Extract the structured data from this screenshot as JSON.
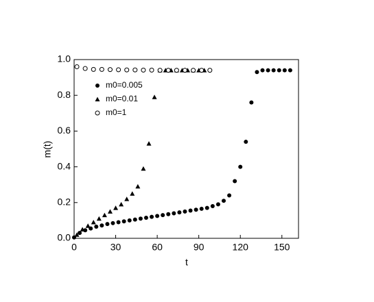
{
  "chart_data": {
    "type": "scatter",
    "xlabel": "t",
    "ylabel": "m(t)",
    "xlim": [
      0,
      162
    ],
    "ylim": [
      0,
      1
    ],
    "xticks": [
      0,
      30,
      60,
      90,
      120,
      150
    ],
    "yticks": [
      {
        "value": 0,
        "label": "0.0"
      },
      {
        "value": 0.2,
        "label": "0.2"
      },
      {
        "value": 0.4,
        "label": "0.4"
      },
      {
        "value": 0.6,
        "label": "0.6"
      },
      {
        "value": 0.8,
        "label": "0.8"
      },
      {
        "value": 1,
        "label": "1.0"
      }
    ],
    "series": [
      {
        "name": "m0=0.005",
        "color": "#000000",
        "marker": "filled-circle",
        "x": [
          0,
          4,
          8,
          12,
          16,
          20,
          24,
          28,
          32,
          36,
          40,
          44,
          48,
          52,
          56,
          60,
          64,
          68,
          72,
          76,
          80,
          84,
          88,
          92,
          96,
          100,
          104,
          108,
          112,
          116,
          120,
          124,
          128,
          132,
          136,
          140,
          144,
          148,
          152,
          156
        ],
        "values": [
          0.005,
          0.03,
          0.045,
          0.055,
          0.065,
          0.072,
          0.08,
          0.085,
          0.09,
          0.095,
          0.1,
          0.105,
          0.11,
          0.115,
          0.12,
          0.125,
          0.13,
          0.135,
          0.14,
          0.145,
          0.15,
          0.155,
          0.16,
          0.165,
          0.17,
          0.18,
          0.19,
          0.21,
          0.24,
          0.32,
          0.4,
          0.54,
          0.76,
          0.93,
          0.94,
          0.94,
          0.94,
          0.94,
          0.94,
          0.94
        ]
      },
      {
        "name": "m0=0.01",
        "color": "#000000",
        "marker": "triangle",
        "x": [
          2,
          6,
          10,
          14,
          18,
          22,
          26,
          30,
          34,
          38,
          42,
          46,
          50,
          54,
          58,
          62,
          66,
          70,
          74,
          78,
          82,
          86,
          90,
          94
        ],
        "values": [
          0.02,
          0.05,
          0.07,
          0.09,
          0.11,
          0.13,
          0.15,
          0.17,
          0.19,
          0.22,
          0.25,
          0.29,
          0.39,
          0.53,
          0.79,
          0.94,
          0.94,
          0.94,
          0.94,
          0.94,
          0.94,
          0.94,
          0.94,
          0.94
        ]
      },
      {
        "name": "m0=1",
        "color": "#000000",
        "marker": "open-circle",
        "x": [
          2,
          8,
          14,
          20,
          26,
          32,
          38,
          44,
          50,
          56,
          62,
          68,
          74,
          80,
          86,
          92,
          98
        ],
        "values": [
          0.96,
          0.95,
          0.945,
          0.945,
          0.944,
          0.943,
          0.942,
          0.942,
          0.941,
          0.941,
          0.94,
          0.94,
          0.94,
          0.94,
          0.94,
          0.94,
          0.94
        ]
      }
    ]
  }
}
